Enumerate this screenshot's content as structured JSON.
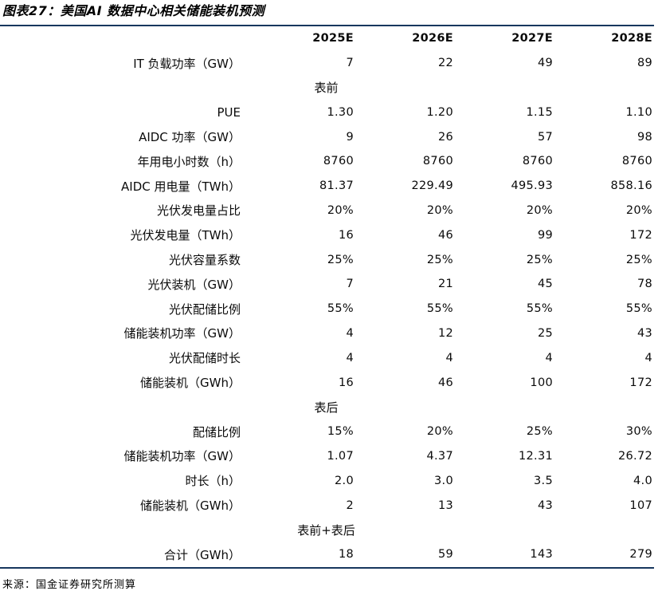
{
  "title": "图表27：美国AI 数据中心相关储能装机预测",
  "source": "来源：国金证券研究所测算",
  "colors": {
    "rule_line": "#17375E",
    "text": "#000000"
  },
  "table": {
    "columns": [
      "2025E",
      "2026E",
      "2027E",
      "2028E"
    ],
    "rows": [
      {
        "type": "data",
        "label": "IT 负载功率（GW）",
        "values": [
          "7",
          "22",
          "49",
          "89"
        ]
      },
      {
        "type": "section",
        "label": "表前"
      },
      {
        "type": "data",
        "label": "PUE",
        "values": [
          "1.30",
          "1.20",
          "1.15",
          "1.10"
        ]
      },
      {
        "type": "data",
        "label": "AIDC 功率（GW）",
        "values": [
          "9",
          "26",
          "57",
          "98"
        ]
      },
      {
        "type": "data",
        "label": "年用电小时数（h）",
        "values": [
          "8760",
          "8760",
          "8760",
          "8760"
        ]
      },
      {
        "type": "data",
        "label": "AIDC 用电量（TWh）",
        "values": [
          "81.37",
          "229.49",
          "495.93",
          "858.16"
        ]
      },
      {
        "type": "data",
        "label": "光伏发电量占比",
        "values": [
          "20%",
          "20%",
          "20%",
          "20%"
        ]
      },
      {
        "type": "data",
        "label": "光伏发电量（TWh）",
        "values": [
          "16",
          "46",
          "99",
          "172"
        ]
      },
      {
        "type": "data",
        "label": "光伏容量系数",
        "values": [
          "25%",
          "25%",
          "25%",
          "25%"
        ]
      },
      {
        "type": "data",
        "label": "光伏装机（GW）",
        "values": [
          "7",
          "21",
          "45",
          "78"
        ]
      },
      {
        "type": "data",
        "label": "光伏配储比例",
        "values": [
          "55%",
          "55%",
          "55%",
          "55%"
        ]
      },
      {
        "type": "data",
        "label": "储能装机功率（GW）",
        "values": [
          "4",
          "12",
          "25",
          "43"
        ]
      },
      {
        "type": "data",
        "label": "光伏配储时长",
        "values": [
          "4",
          "4",
          "4",
          "4"
        ]
      },
      {
        "type": "data",
        "label": "储能装机（GWh）",
        "values": [
          "16",
          "46",
          "100",
          "172"
        ]
      },
      {
        "type": "section",
        "label": "表后"
      },
      {
        "type": "data",
        "label": "配储比例",
        "values": [
          "15%",
          "20%",
          "25%",
          "30%"
        ]
      },
      {
        "type": "data",
        "label": "储能装机功率（GW）",
        "values": [
          "1.07",
          "4.37",
          "12.31",
          "26.72"
        ]
      },
      {
        "type": "data",
        "label": "时长（h）",
        "values": [
          "2.0",
          "3.0",
          "3.5",
          "4.0"
        ]
      },
      {
        "type": "data",
        "label": "储能装机（GWh）",
        "values": [
          "2",
          "13",
          "43",
          "107"
        ]
      },
      {
        "type": "section",
        "label": "表前+表后"
      },
      {
        "type": "data",
        "label": "合计（GWh）",
        "values": [
          "18",
          "59",
          "143",
          "279"
        ]
      }
    ]
  }
}
